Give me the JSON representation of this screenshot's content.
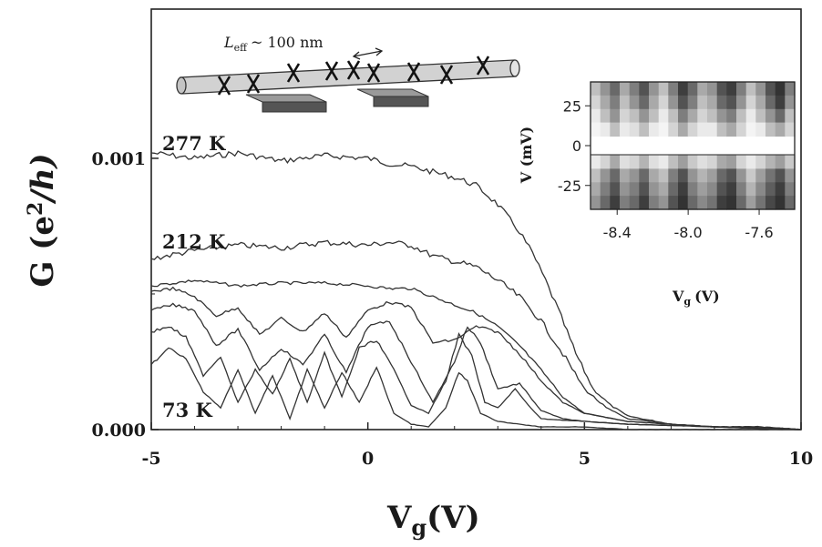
{
  "chart_data": [
    {
      "type": "line",
      "title": "",
      "xlabel": "V",
      "xlabel_sub": "g",
      "xlabel_unit": "(V)",
      "ylabel_main": "G (e",
      "ylabel_sup": "2",
      "ylabel_tail": "/h)",
      "xlim": [
        -5,
        10
      ],
      "ylim": [
        0,
        0.00155
      ],
      "x_ticks": [
        -5,
        0,
        5,
        10
      ],
      "x_tick_labels": [
        "-5",
        "0",
        "5",
        "10"
      ],
      "y_ticks": [
        0,
        0.001
      ],
      "y_tick_labels": [
        "0.000",
        "0.001"
      ],
      "grid": false,
      "annotations": [
        "277 K",
        "212 K",
        "73 K"
      ],
      "device_label": "L",
      "device_label_sub": "eff",
      "device_label_tail": "~ 100 nm",
      "series": [
        {
          "x": [
            -5,
            -4,
            -3,
            -2,
            -1,
            0,
            0.5,
            1,
            1.5,
            2,
            2.5,
            3,
            3.5,
            3.8,
            4.1,
            4.4,
            4.8,
            5.2,
            5.6,
            6,
            7,
            8,
            9,
            10
          ],
          "y": [
            0.00102,
            0.001,
            0.00102,
            0.00099,
            0.00101,
            0.001,
            0.00098,
            0.00097,
            0.00095,
            0.00093,
            0.0009,
            0.00083,
            0.00073,
            0.00065,
            0.00055,
            0.00044,
            0.00028,
            0.00015,
            9e-05,
            5e-05,
            2e-05,
            1e-05,
            1e-05,
            0.0
          ]
        },
        {
          "x": [
            -5,
            -4,
            -3,
            -2,
            -1,
            0,
            0.5,
            1,
            1.5,
            2,
            2.5,
            3,
            3.5,
            4,
            4.5,
            5,
            5.5,
            6,
            7,
            8,
            9,
            10
          ],
          "y": [
            0.00063,
            0.00066,
            0.00068,
            0.00067,
            0.00069,
            0.00068,
            0.00069,
            0.00068,
            0.00064,
            0.00062,
            0.0006,
            0.00055,
            0.00049,
            0.0004,
            0.00028,
            0.00015,
            8e-05,
            4e-05,
            2e-05,
            1e-05,
            1e-05,
            0.0
          ]
        },
        {
          "x": [
            -5,
            -4,
            -3,
            -2,
            -1,
            0,
            0.5,
            1,
            1.5,
            2,
            2.5,
            3,
            3.5,
            4,
            4.5,
            5,
            6,
            7,
            8,
            9,
            10
          ],
          "y": [
            0.00053,
            0.00055,
            0.00053,
            0.00054,
            0.00054,
            0.00053,
            0.00052,
            0.00052,
            0.00049,
            0.00046,
            0.00043,
            0.00038,
            0.00031,
            0.00022,
            0.00012,
            6e-05,
            3e-05,
            2e-05,
            1e-05,
            1e-05,
            0.0
          ]
        },
        {
          "x": [
            -5,
            -4.5,
            -4,
            -3.5,
            -3,
            -2.5,
            -2,
            -1.5,
            -1,
            -0.5,
            0,
            0.5,
            1,
            1.5,
            2,
            2.5,
            3,
            3.5,
            4,
            4.5,
            5,
            6,
            8,
            10
          ],
          "y": [
            0.00051,
            0.00052,
            0.00049,
            0.00042,
            0.00045,
            0.00035,
            0.00041,
            0.00036,
            0.00043,
            0.00034,
            0.00044,
            0.00047,
            0.00045,
            0.00032,
            0.00033,
            0.00038,
            0.00036,
            0.00028,
            0.00018,
            0.0001,
            6e-05,
            3e-05,
            1e-05,
            0.0
          ]
        },
        {
          "x": [
            -5,
            -4.5,
            -4,
            -3.5,
            -3,
            -2.5,
            -2,
            -1.5,
            -1,
            -0.5,
            0,
            0.5,
            1,
            1.5,
            2,
            2.3,
            2.6,
            3,
            3.5,
            4,
            4.5,
            5,
            6,
            8,
            10
          ],
          "y": [
            0.00044,
            0.00046,
            0.00044,
            0.00031,
            0.00037,
            0.00022,
            0.0003,
            0.00024,
            0.00035,
            0.00021,
            0.00038,
            0.0004,
            0.00025,
            0.0001,
            0.00025,
            0.00038,
            0.00032,
            0.00015,
            0.00017,
            7e-05,
            4e-05,
            3e-05,
            2e-05,
            1e-05,
            0.0
          ]
        },
        {
          "x": [
            -5,
            -4.6,
            -4.2,
            -3.8,
            -3.4,
            -3,
            -2.6,
            -2.2,
            -1.8,
            -1.4,
            -1,
            -0.6,
            -0.2,
            0.2,
            0.6,
            1,
            1.4,
            1.8,
            2.1,
            2.4,
            2.7,
            3,
            3.4,
            3.7,
            4,
            5,
            6,
            8,
            10
          ],
          "y": [
            0.00036,
            0.00038,
            0.00034,
            0.0002,
            0.00027,
            0.0001,
            0.00022,
            0.00013,
            0.00026,
            0.0001,
            0.00028,
            0.00012,
            0.0003,
            0.00033,
            0.00022,
            9e-05,
            6e-05,
            0.00018,
            0.00035,
            0.00027,
            0.0001,
            8e-05,
            0.00015,
            9e-05,
            4e-05,
            3e-05,
            2e-05,
            1e-05,
            0.0
          ]
        },
        {
          "x": [
            -5,
            -4.6,
            -4.2,
            -3.8,
            -3.4,
            -3,
            -2.6,
            -2.2,
            -1.8,
            -1.4,
            -1,
            -0.6,
            -0.2,
            0.2,
            0.6,
            1,
            1.4,
            1.8,
            2.1,
            2.3,
            2.6,
            3,
            3.5,
            4,
            5,
            6,
            8,
            10
          ],
          "y": [
            0.00024,
            0.0003,
            0.00026,
            0.00014,
            8e-05,
            0.00022,
            6e-05,
            0.0002,
            4e-05,
            0.00022,
            8e-05,
            0.00021,
            0.0001,
            0.00023,
            6e-05,
            2e-05,
            1e-05,
            8e-05,
            0.00021,
            0.00018,
            6e-05,
            3e-05,
            2e-05,
            1e-05,
            1e-05,
            0.0,
            0.0,
            0.0
          ]
        }
      ]
    },
    {
      "type": "heatmap",
      "title": "",
      "xlabel": "V",
      "xlabel_sub": "g",
      "xlabel_unit": "(V)",
      "ylabel": "V (mV)",
      "xlim": [
        -8.55,
        -7.4
      ],
      "ylim": [
        -40,
        40
      ],
      "x_ticks": [
        -8.4,
        -8.0,
        -7.6
      ],
      "x_tick_labels": [
        "-8.4",
        "-8.0",
        "-7.6"
      ],
      "y_ticks": [
        25,
        0,
        -25
      ],
      "y_tick_labels": [
        "25",
        "0",
        "-25"
      ],
      "gap_half_width_mV": 6,
      "intensity_rows_upper": [
        [
          0.3,
          0.5,
          0.7,
          0.4,
          0.6,
          0.8,
          0.5,
          0.3,
          0.6,
          0.9,
          0.7,
          0.4,
          0.5,
          0.8,
          0.9,
          0.6,
          0.3,
          0.5,
          0.8,
          0.95,
          0.6
        ],
        [
          0.2,
          0.4,
          0.6,
          0.3,
          0.5,
          0.7,
          0.4,
          0.2,
          0.5,
          0.8,
          0.6,
          0.3,
          0.4,
          0.7,
          0.8,
          0.5,
          0.2,
          0.4,
          0.7,
          0.9,
          0.5
        ],
        [
          0.1,
          0.3,
          0.5,
          0.2,
          0.3,
          0.5,
          0.3,
          0.1,
          0.3,
          0.6,
          0.4,
          0.2,
          0.3,
          0.5,
          0.6,
          0.3,
          0.1,
          0.3,
          0.5,
          0.7,
          0.3
        ],
        [
          0.05,
          0.1,
          0.3,
          0.1,
          0.15,
          0.3,
          0.1,
          0.05,
          0.2,
          0.4,
          0.2,
          0.1,
          0.1,
          0.3,
          0.4,
          0.2,
          0.05,
          0.1,
          0.3,
          0.4,
          0.2
        ]
      ],
      "intensity_rows_lower": [
        [
          0.1,
          0.2,
          0.4,
          0.15,
          0.2,
          0.35,
          0.15,
          0.1,
          0.3,
          0.45,
          0.25,
          0.15,
          0.2,
          0.4,
          0.45,
          0.2,
          0.1,
          0.2,
          0.35,
          0.45,
          0.25
        ],
        [
          0.3,
          0.5,
          0.7,
          0.4,
          0.5,
          0.7,
          0.4,
          0.3,
          0.6,
          0.8,
          0.5,
          0.35,
          0.45,
          0.7,
          0.8,
          0.5,
          0.25,
          0.45,
          0.65,
          0.8,
          0.5
        ],
        [
          0.4,
          0.6,
          0.8,
          0.5,
          0.6,
          0.8,
          0.5,
          0.4,
          0.7,
          0.9,
          0.6,
          0.45,
          0.55,
          0.8,
          0.9,
          0.6,
          0.35,
          0.55,
          0.75,
          0.9,
          0.6
        ],
        [
          0.5,
          0.7,
          0.9,
          0.6,
          0.7,
          0.9,
          0.6,
          0.5,
          0.8,
          0.95,
          0.7,
          0.55,
          0.65,
          0.9,
          0.95,
          0.7,
          0.45,
          0.65,
          0.85,
          0.95,
          0.7
        ]
      ]
    }
  ]
}
